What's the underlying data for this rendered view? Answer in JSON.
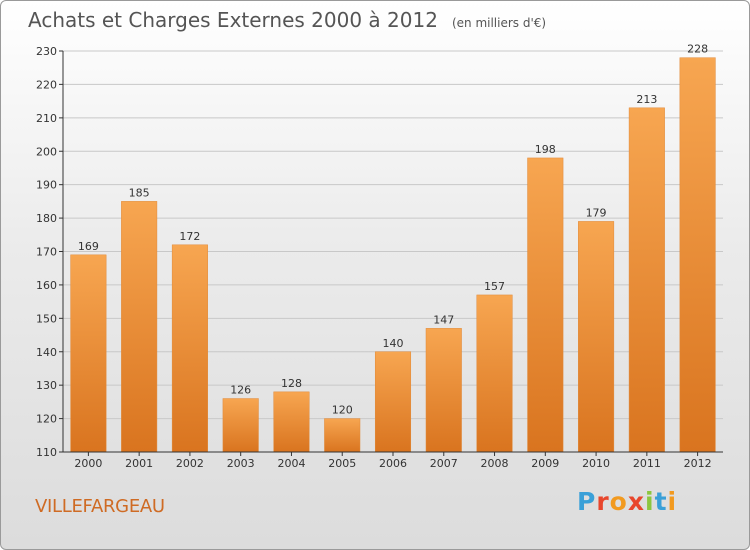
{
  "title": "Achats et Charges Externes 2000 à 2012",
  "unit": "(en milliers d'€)",
  "commune": "VILLEFARGEAU",
  "logo": {
    "letters": [
      "P",
      "r",
      "o",
      "x",
      "i",
      "t",
      "i"
    ],
    "colors": [
      "#3aa0d8",
      "#e8462c",
      "#f29a1f",
      "#e8462c",
      "#8cc63f",
      "#3aa0d8",
      "#f29a1f"
    ]
  },
  "colors": {
    "bar_top": "#f7a651",
    "bar_bottom": "#d9741f",
    "grid": "#c8c8c8",
    "axis": "#333333"
  },
  "chart_data": {
    "type": "bar",
    "title": "Achats et Charges Externes 2000 à 2012",
    "categories": [
      "2000",
      "2001",
      "2002",
      "2003",
      "2004",
      "2005",
      "2006",
      "2007",
      "2008",
      "2009",
      "2010",
      "2011",
      "2012"
    ],
    "values": [
      169,
      185,
      172,
      126,
      128,
      120,
      140,
      147,
      157,
      198,
      179,
      213,
      228
    ],
    "ylim": [
      110,
      230
    ],
    "yticks": [
      110,
      120,
      130,
      140,
      150,
      160,
      170,
      180,
      190,
      200,
      210,
      220,
      230
    ],
    "grid": true,
    "data_labels": true
  }
}
